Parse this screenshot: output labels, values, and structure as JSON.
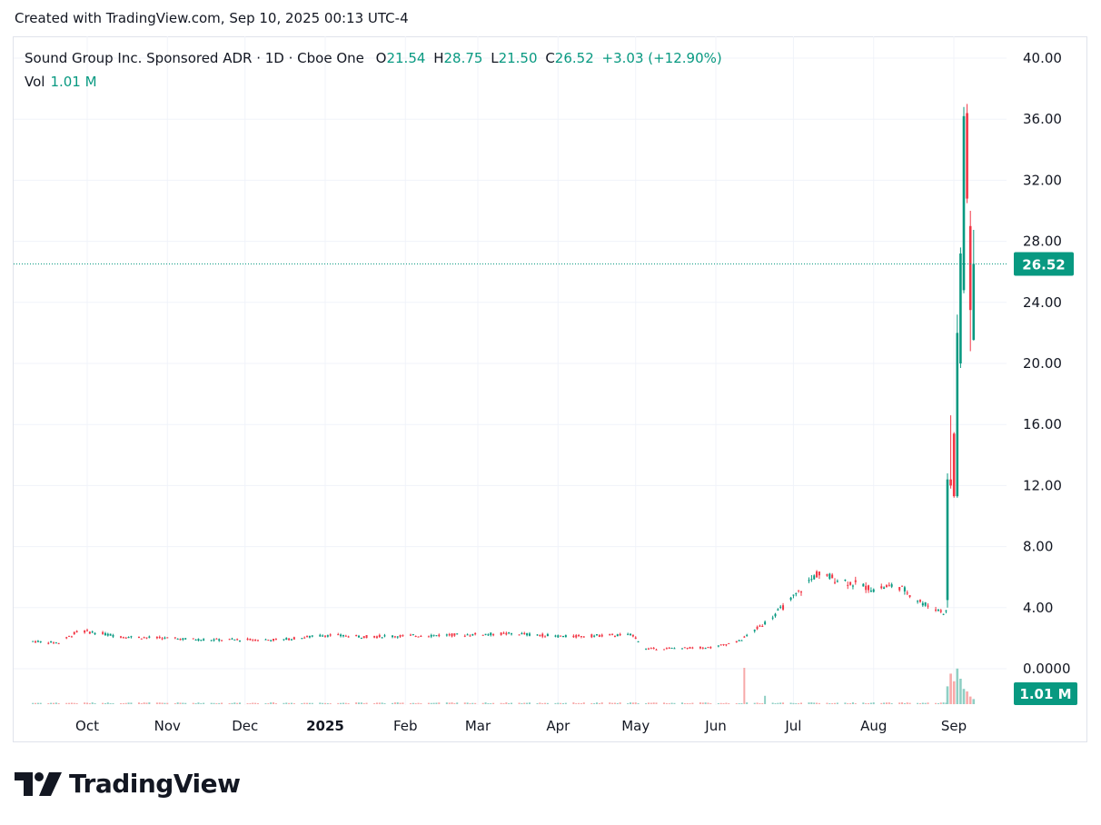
{
  "header": {
    "created": "Created with TradingView.com, Sep 10, 2025 00:13 UTC-4"
  },
  "legend": {
    "symbol": "Sound Group Inc. Sponsored ADR · 1D · Cboe One",
    "o_label": "O",
    "o": "21.54",
    "h_label": "H",
    "h": "28.75",
    "l_label": "L",
    "l": "21.50",
    "c_label": "C",
    "c": "26.52",
    "change": "+3.03 (+12.90%)",
    "vol_label": "Vol",
    "vol": "1.01 M"
  },
  "brand": {
    "name": "TradingView"
  },
  "colors": {
    "up": "#089981",
    "down": "#f23645",
    "vol_up": "#8fcfc4",
    "vol_down": "#f7a9a9",
    "grid": "#f0f3fa",
    "text": "#131722"
  },
  "chart_data": {
    "type": "candlestick",
    "symbol": "Sound Group Inc. Sponsored ADR",
    "interval": "1D",
    "exchange": "Cboe One",
    "y_ticks": [
      "40.00",
      "36.00",
      "32.00",
      "28.00",
      "24.00",
      "20.00",
      "16.00",
      "12.00",
      "8.00",
      "4.00",
      "0.0000"
    ],
    "y_range": [
      0,
      40
    ],
    "x_ticks": [
      "Oct",
      "Nov",
      "Dec",
      "2025",
      "Feb",
      "Mar",
      "Apr",
      "May",
      "Jun",
      "Jul",
      "Aug",
      "Sep"
    ],
    "last_price": "26.52",
    "last_volume": "1.01 M",
    "ohlc_last": {
      "open": 21.54,
      "high": 28.75,
      "low": 21.5,
      "close": 26.52
    },
    "price_path": [
      [
        "2024-09-10",
        1.8
      ],
      [
        "2024-09-20",
        1.7
      ],
      [
        "2024-09-28",
        2.5
      ],
      [
        "2024-10-15",
        2.1
      ],
      [
        "2024-11-15",
        1.9
      ],
      [
        "2024-12-15",
        1.9
      ],
      [
        "2025-01-01",
        2.2
      ],
      [
        "2025-01-15",
        2.1
      ],
      [
        "2025-02-15",
        2.2
      ],
      [
        "2025-03-15",
        2.3
      ],
      [
        "2025-04-05",
        2.1
      ],
      [
        "2025-04-20",
        2.2
      ],
      [
        "2025-04-30",
        2.2
      ],
      [
        "2025-05-05",
        1.3
      ],
      [
        "2025-05-31",
        1.4
      ],
      [
        "2025-06-10",
        1.8
      ],
      [
        "2025-06-20",
        3.0
      ],
      [
        "2025-06-30",
        4.5
      ],
      [
        "2025-07-10",
        6.2
      ],
      [
        "2025-07-20",
        5.8
      ],
      [
        "2025-08-01",
        5.2
      ],
      [
        "2025-08-10",
        5.5
      ],
      [
        "2025-08-20",
        4.3
      ],
      [
        "2025-08-28",
        3.7
      ],
      [
        "2025-09-01",
        3.8
      ]
    ],
    "final_candles": [
      {
        "date": "2025-09-02",
        "o": 4.5,
        "h": 12.8,
        "l": 4.0,
        "c": 12.4
      },
      {
        "date": "2025-09-03",
        "o": 12.4,
        "h": 16.6,
        "l": 11.8,
        "c": 12.0
      },
      {
        "date": "2025-09-04",
        "o": 15.4,
        "h": 15.5,
        "l": 11.2,
        "c": 11.3
      },
      {
        "date": "2025-09-05",
        "o": 11.3,
        "h": 23.2,
        "l": 11.2,
        "c": 22.0
      },
      {
        "date": "2025-09-05b",
        "o": 20.0,
        "h": 27.6,
        "l": 19.7,
        "c": 27.2
      },
      {
        "date": "2025-09-08",
        "o": 24.8,
        "h": 36.8,
        "l": 24.6,
        "c": 36.2
      },
      {
        "date": "2025-09-08b",
        "o": 36.4,
        "h": 37.0,
        "l": 30.5,
        "c": 30.8
      },
      {
        "date": "2025-09-09",
        "o": 29.0,
        "h": 30.0,
        "l": 20.8,
        "c": 23.5
      },
      {
        "date": "2025-09-10",
        "o": 21.54,
        "h": 28.75,
        "l": 21.5,
        "c": 26.52
      }
    ],
    "grid": true
  }
}
